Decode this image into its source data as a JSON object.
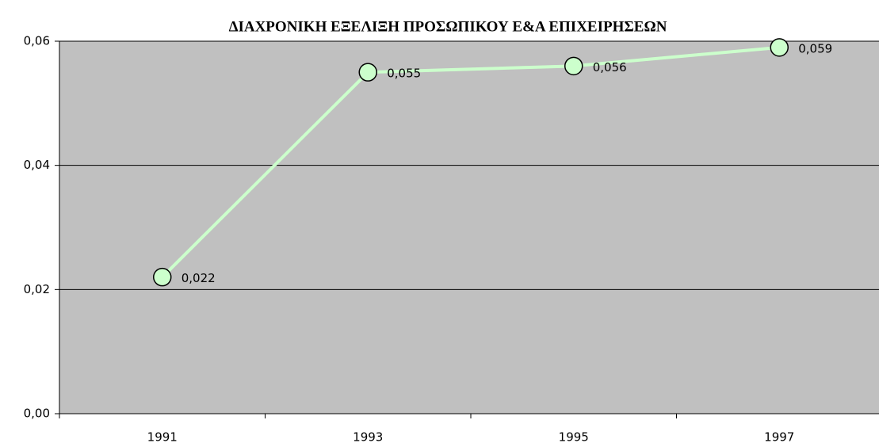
{
  "chart_data": {
    "type": "line",
    "title": "ΔΙΑΧΡΟΝΙΚΗ ΕΞΕΛΙΞΗ ΠΡΟΣΩΠΙΚΟΥ Ε&Α ΕΠΙΧΕΙΡΗΣΕΩΝ",
    "categories": [
      "1991",
      "1993",
      "1995",
      "1997"
    ],
    "values": [
      0.022,
      0.055,
      0.056,
      0.059
    ],
    "value_labels": [
      "0,022",
      "0,055",
      "0,056",
      "0,059"
    ],
    "color": "#ccffcc",
    "ylim": [
      0,
      0.06
    ],
    "yticks": [
      {
        "value": 0,
        "label": "0,00"
      },
      {
        "value": 0.02,
        "label": "0,02"
      },
      {
        "value": 0.04,
        "label": "0,04"
      },
      {
        "value": 0.06,
        "label": "0,06"
      }
    ],
    "grid": true
  }
}
